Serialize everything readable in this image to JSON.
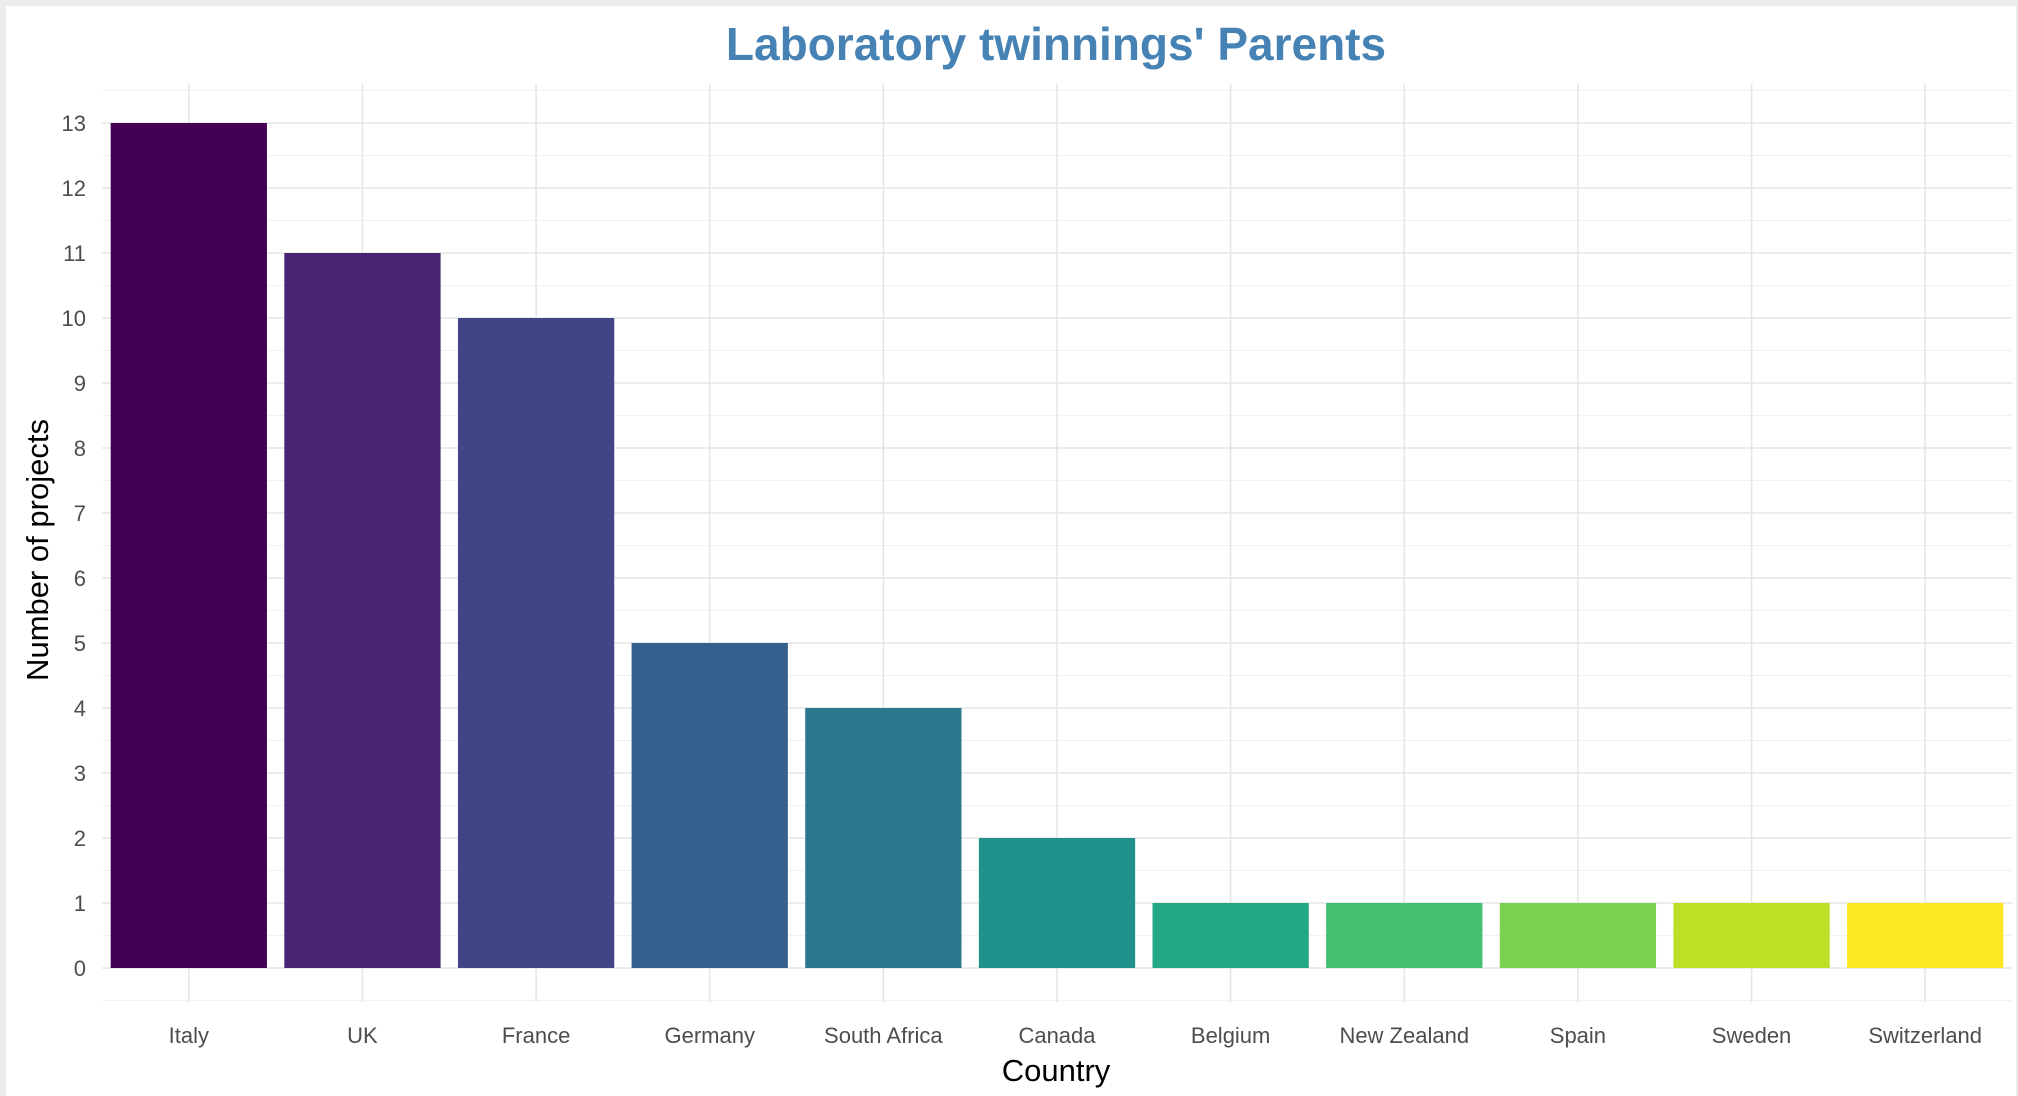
{
  "chart_data": {
    "type": "bar",
    "title": "Laboratory twinnings' Parents",
    "xlabel": "Country",
    "ylabel": "Number of projects",
    "categories": [
      "Italy",
      "UK",
      "France",
      "Germany",
      "South Africa",
      "Canada",
      "Belgium",
      "New Zealand",
      "Spain",
      "Sweden",
      "Switzerland"
    ],
    "values": [
      13,
      11,
      10,
      5,
      4,
      2,
      1,
      1,
      1,
      1,
      1
    ],
    "ylim": [
      0,
      13
    ],
    "yticks": [
      0,
      1,
      2,
      3,
      4,
      5,
      6,
      7,
      8,
      9,
      10,
      11,
      12,
      13
    ],
    "grid": true,
    "legend": "none",
    "colors": [
      "#440154",
      "#482475",
      "#414487",
      "#355f8d",
      "#2a788e",
      "#21918c",
      "#22a884",
      "#44bf70",
      "#7ad151",
      "#bddf26",
      "#fde725"
    ],
    "title_color": "#4682b4"
  }
}
